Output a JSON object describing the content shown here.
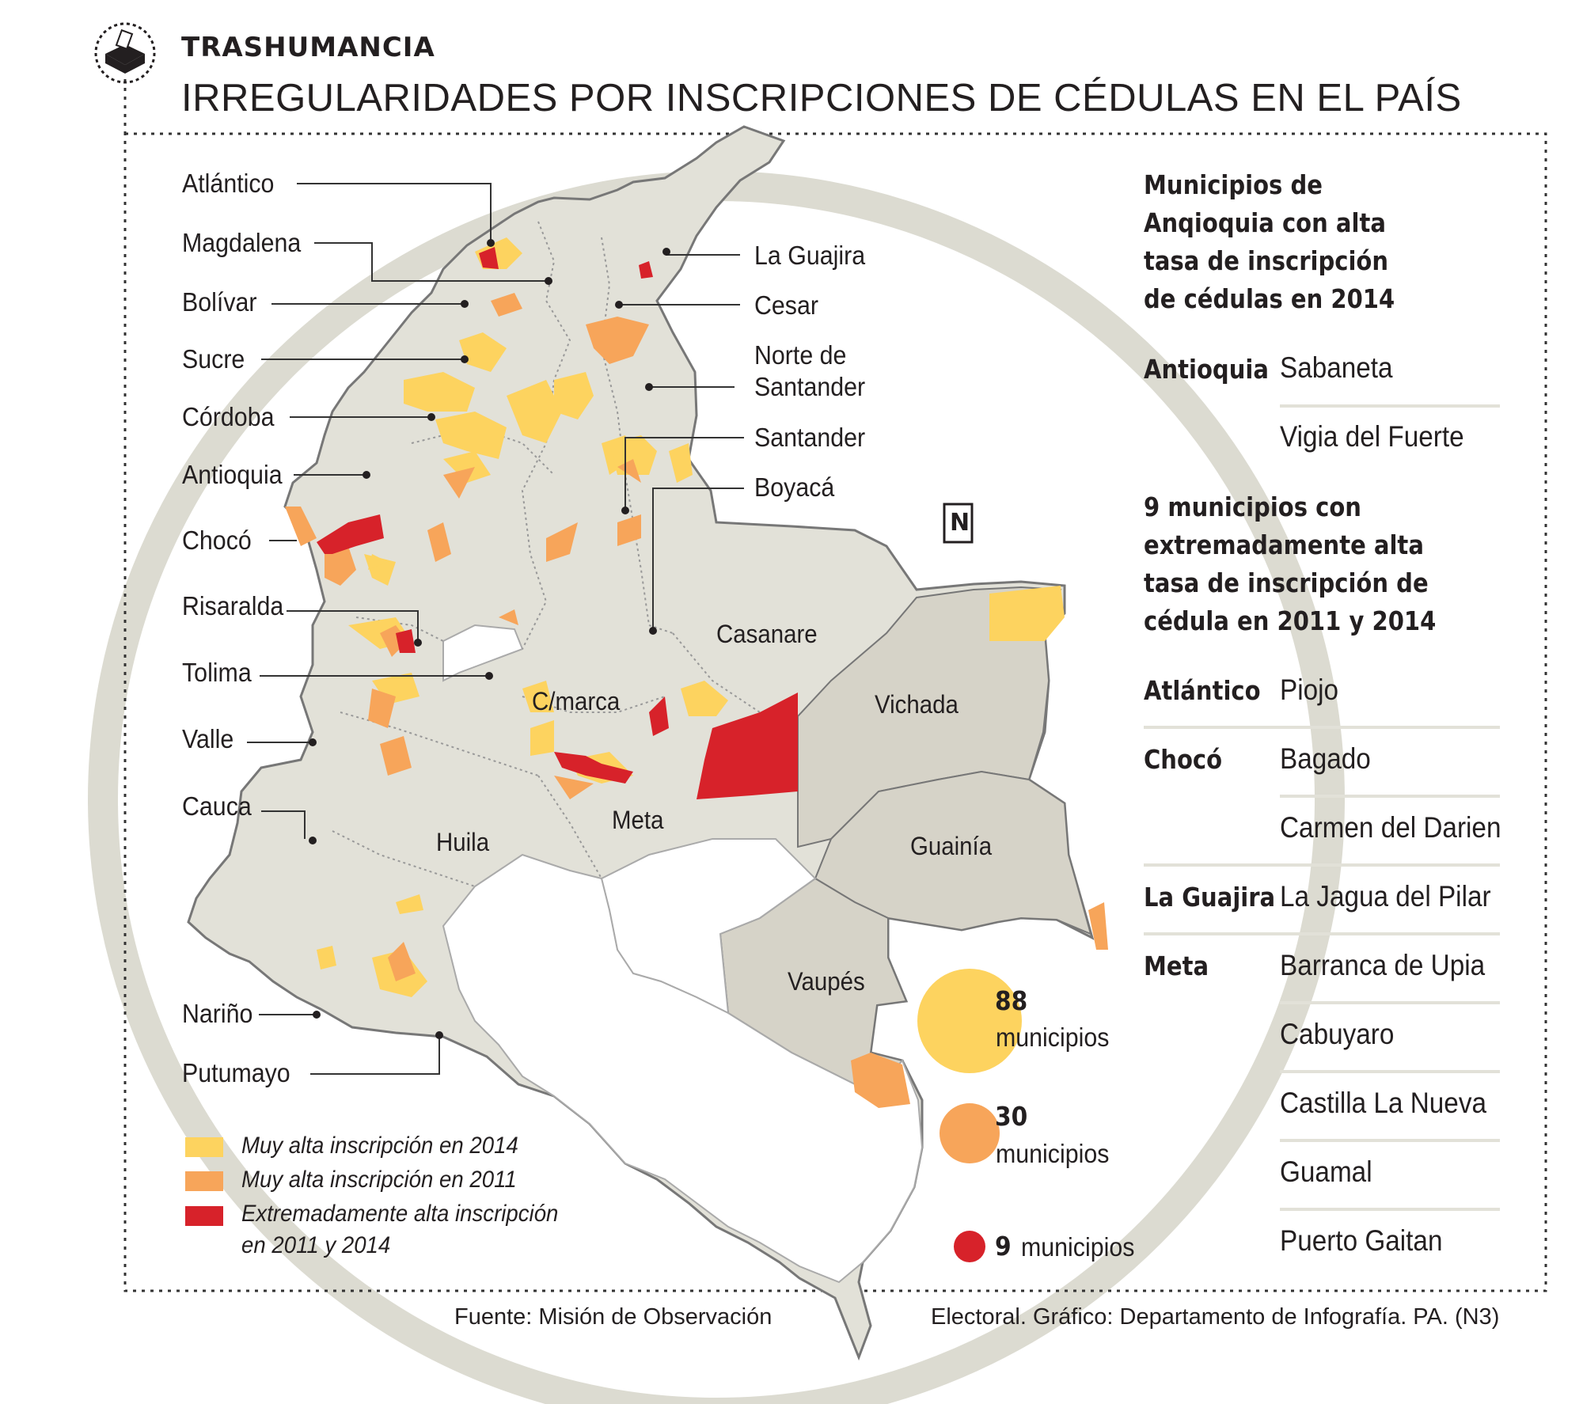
{
  "header": {
    "kicker": "TRASHUMANCIA",
    "title": "IRREGULARIDADES POR INSCRIPCIONES DE CÉDULAS EN EL PAÍS"
  },
  "map": {
    "north_label": "N",
    "department_labels_left": [
      "Atlántico",
      "Magdalena",
      "Bolívar",
      "Sucre",
      "Córdoba",
      "Antioquia",
      "Chocó",
      "Risaralda",
      "Tolima",
      "Valle",
      "Cauca",
      "Nariño",
      "Putumayo"
    ],
    "department_labels_right": [
      "La Guajira",
      "Cesar",
      "Norte de",
      "Santander",
      "Santander",
      "Boyacá"
    ],
    "region_labels": [
      "Casanare",
      "Vichada",
      "C/marca",
      "Meta",
      "Huila",
      "Guainía",
      "Vaupés"
    ],
    "colors": {
      "land": "#e2e1d8",
      "border": "#8f8f8a",
      "very_high_2014": "#fdd35f",
      "very_high_2011": "#f7a55a",
      "extreme": "#d7222a",
      "ring": "#ddddd3"
    }
  },
  "legend": [
    {
      "label": "Muy alta inscripción en 2014",
      "color": "#fdd35f"
    },
    {
      "label": "Muy alta inscripción en 2011",
      "color": "#f7a55a"
    },
    {
      "label": "Extremadamente alta inscripción",
      "label2": "en 2011 y 2014",
      "color": "#d7222a"
    }
  ],
  "bubbles": [
    {
      "count": "88",
      "unit": "municipios",
      "color": "#fdd35f"
    },
    {
      "count": "30",
      "unit": "municipios",
      "color": "#f7a55a"
    },
    {
      "count": "9",
      "unit": "municipios",
      "color": "#d7222a"
    }
  ],
  "sidebar": {
    "heading1": [
      "Municipios de",
      "Anqioquia con alta",
      "tasa de inscripción",
      "de cédulas en 2014"
    ],
    "group1": [
      {
        "dept": "Antioquia",
        "municipios": [
          "Sabaneta",
          "Vigia del Fuerte"
        ]
      }
    ],
    "heading2": [
      "9 municipios con",
      "extremadamente alta",
      "tasa de inscripción de",
      "cédula en 2011 y 2014"
    ],
    "group2": [
      {
        "dept": "Atlántico",
        "municipios": [
          "Piojo"
        ]
      },
      {
        "dept": "Chocó",
        "municipios": [
          "Bagado",
          "Carmen del Darien"
        ]
      },
      {
        "dept": "La Guajira",
        "municipios": [
          "La Jagua del Pilar"
        ]
      },
      {
        "dept": "Meta",
        "municipios": [
          "Barranca de Upia",
          "Cabuyaro",
          "Castilla La Nueva",
          "Guamal",
          "Puerto Gaitan"
        ]
      }
    ]
  },
  "footer": {
    "source_left": "Fuente: Misión de Observación",
    "source_right": "Electoral. Gráfico: Departamento de Infografía. PA. (N3)"
  }
}
